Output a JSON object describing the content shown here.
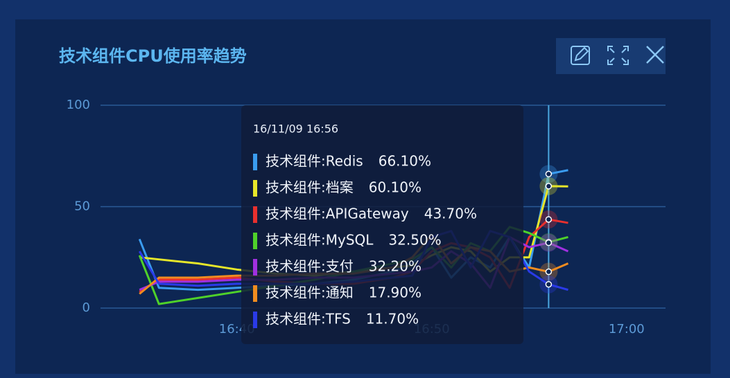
{
  "chart_data": {
    "type": "line",
    "title": "技术组件CPU使用率趋势",
    "x": [
      "16:35",
      "16:36",
      "16:38",
      "16:40",
      "16:42",
      "16:44",
      "16:46",
      "16:48",
      "16:49",
      "16:50",
      "16:51",
      "16:52",
      "16:53",
      "16:54",
      "16:55",
      "16:56",
      "16:57"
    ],
    "xlim": [
      "16:33",
      "17:02"
    ],
    "xticks": [
      "16:40",
      "16:50",
      "17:00"
    ],
    "ylim": [
      0,
      100
    ],
    "yticks": [
      0,
      50,
      100
    ],
    "grid": true,
    "series": [
      {
        "name": "技术组件:Redis",
        "color": "#3a9cf0",
        "values": [
          34,
          10,
          9,
          10,
          11,
          12,
          14,
          18,
          22,
          30,
          15,
          25,
          20,
          35,
          20,
          66.1,
          68
        ]
      },
      {
        "name": "技术组件:档案",
        "color": "#e6e62a",
        "values": [
          25,
          24,
          22,
          19,
          17,
          16,
          18,
          20,
          21,
          26,
          30,
          28,
          18,
          25,
          25,
          60.1,
          60
        ]
      },
      {
        "name": "技术组件:APIGateway",
        "color": "#e8302e",
        "values": [
          8,
          14,
          14,
          15,
          13,
          12,
          12,
          15,
          18,
          28,
          32,
          30,
          25,
          10,
          35,
          43.7,
          42
        ]
      },
      {
        "name": "技术组件:MySQL",
        "color": "#4fd12a",
        "values": [
          26,
          2,
          5,
          8,
          11,
          14,
          18,
          22,
          24,
          30,
          20,
          32,
          28,
          40,
          37,
          32.5,
          35
        ]
      },
      {
        "name": "技术组件:支付",
        "color": "#a030e0",
        "values": [
          9,
          13,
          13,
          14,
          14,
          15,
          15,
          17,
          18,
          20,
          28,
          22,
          10,
          35,
          30,
          32.2,
          28
        ]
      },
      {
        "name": "技术组件:通知",
        "color": "#f08c20",
        "values": [
          7,
          15,
          15,
          16,
          16,
          17,
          17,
          20,
          25,
          36,
          22,
          30,
          28,
          18,
          20,
          17.9,
          22
        ]
      },
      {
        "name": "技术组件:TFS",
        "color": "#2a3ae8",
        "values": [
          28,
          12,
          11,
          12,
          12,
          12,
          13,
          15,
          16,
          35,
          38,
          20,
          38,
          35,
          18,
          11.7,
          9
        ]
      }
    ],
    "tooltip": {
      "title": "16/11/09 16:56",
      "value_labels": [
        "66.10%",
        "60.10%",
        "43.70%",
        "32.50%",
        "32.20%",
        "17.90%",
        "11.70%"
      ]
    }
  }
}
